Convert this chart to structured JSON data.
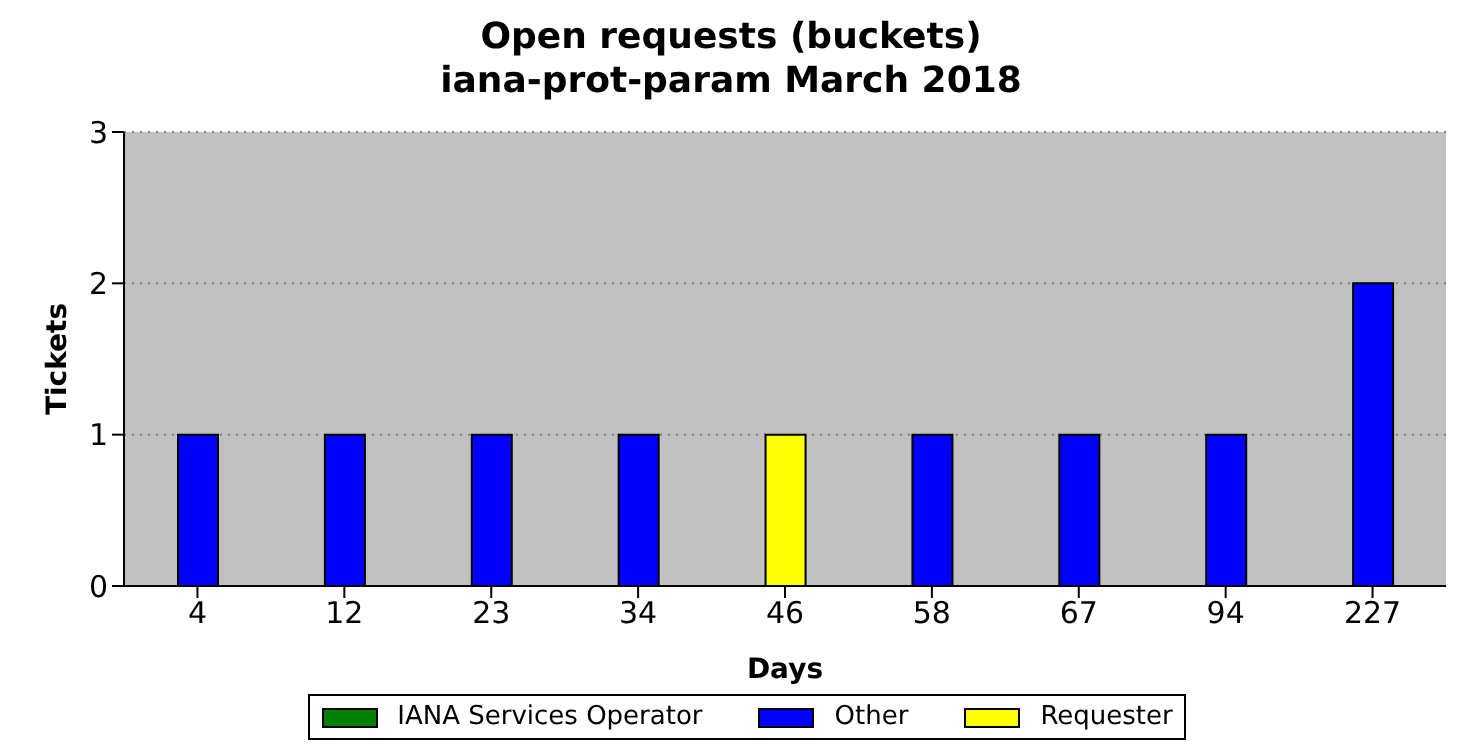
{
  "chart_data": {
    "type": "bar",
    "title": "Open requests (buckets)",
    "subtitle": "iana-prot-param March 2018",
    "xlabel": "Days",
    "ylabel": "Tickets",
    "categories": [
      "4",
      "12",
      "23",
      "34",
      "46",
      "58",
      "67",
      "94",
      "227"
    ],
    "series": [
      {
        "name": "IANA Services Operator",
        "color": "#008000",
        "values": [
          0,
          0,
          0,
          0,
          0,
          0,
          0,
          0,
          0
        ]
      },
      {
        "name": "Other",
        "color": "#0000ff",
        "values": [
          1,
          1,
          1,
          1,
          0,
          1,
          1,
          1,
          2
        ]
      },
      {
        "name": "Requester",
        "color": "#ffff00",
        "values": [
          0,
          0,
          0,
          0,
          1,
          0,
          0,
          0,
          0
        ]
      }
    ],
    "stacked": true,
    "ylim": [
      0,
      3
    ],
    "yticks": [
      0,
      1,
      2,
      3
    ],
    "grid": "y",
    "legend": "bottom"
  }
}
